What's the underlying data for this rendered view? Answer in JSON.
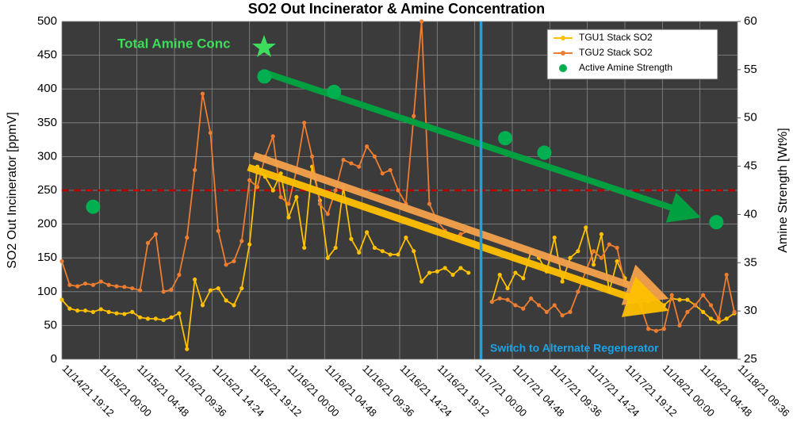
{
  "chart_data": {
    "type": "line",
    "title": "SO2 Out Incinerator & Amine Concentration",
    "y_label": "SO2 Out Incinerator [ppmV]",
    "y2_label": "Amine Strength [Wt%]",
    "xlim": [
      0,
      86.4
    ],
    "xticks": [
      {
        "value": 0,
        "label": "11/14/21 19:12"
      },
      {
        "value": 4.8,
        "label": "11/15/21 00:00"
      },
      {
        "value": 9.6,
        "label": "11/15/21 04:48"
      },
      {
        "value": 14.4,
        "label": "11/15/21 09:36"
      },
      {
        "value": 19.2,
        "label": "11/15/21 14:24"
      },
      {
        "value": 24,
        "label": "11/15/21 19:12"
      },
      {
        "value": 28.8,
        "label": "11/16/21 00:00"
      },
      {
        "value": 33.6,
        "label": "11/16/21 04:48"
      },
      {
        "value": 38.4,
        "label": "11/16/21 09:36"
      },
      {
        "value": 43.2,
        "label": "11/16/21 14:24"
      },
      {
        "value": 48,
        "label": "11/16/21 19:12"
      },
      {
        "value": 52.8,
        "label": "11/17/21 00:00"
      },
      {
        "value": 57.6,
        "label": "11/17/21 04:48"
      },
      {
        "value": 62.4,
        "label": "11/17/21 09:36"
      },
      {
        "value": 67.2,
        "label": "11/17/21 14:24"
      },
      {
        "value": 72,
        "label": "11/17/21 19:12"
      },
      {
        "value": 76.8,
        "label": "11/18/21 00:00"
      },
      {
        "value": 81.6,
        "label": "11/18/21 04:48"
      },
      {
        "value": 86.4,
        "label": "11/18/21 09:36"
      }
    ],
    "ylim": [
      0,
      500
    ],
    "yticks": [
      0,
      50,
      100,
      150,
      200,
      250,
      300,
      350,
      400,
      450,
      500
    ],
    "y2lim": [
      25,
      60
    ],
    "y2ticks": [
      25,
      30,
      35,
      40,
      45,
      50,
      55,
      60
    ],
    "grid": true,
    "ref_line": 250,
    "annotations": [
      {
        "text": "Total Amine Conc"
      },
      {
        "text": "Switch to Alternate Regenerator",
        "x": 53.6
      }
    ],
    "series": [
      {
        "name": "TGU1 Stack SO2",
        "color": "#ffc000",
        "values": [
          88,
          75,
          72,
          72,
          70,
          74,
          70,
          68,
          67,
          70,
          62,
          60,
          60,
          58,
          62,
          68,
          15,
          118,
          80,
          102,
          105,
          87,
          80,
          105,
          170,
          285,
          270,
          250,
          275,
          210,
          240,
          165,
          285,
          235,
          150,
          165,
          255,
          178,
          158,
          188,
          165,
          160,
          155,
          155,
          180,
          160,
          115,
          128,
          130,
          135,
          125,
          135,
          128,
          null,
          null,
          85,
          125,
          105,
          128,
          120,
          160,
          150,
          130,
          180,
          115,
          150,
          160,
          195,
          140,
          185,
          100,
          145,
          120,
          95,
          90,
          85,
          90,
          80,
          90,
          88,
          88,
          80,
          70,
          60,
          55,
          60,
          68
        ]
      },
      {
        "name": "TGU2 Stack SO2",
        "color": "#ed7d31",
        "values": [
          145,
          110,
          108,
          112,
          110,
          115,
          110,
          108,
          107,
          105,
          102,
          172,
          185,
          100,
          103,
          125,
          180,
          280,
          393,
          335,
          190,
          140,
          145,
          175,
          265,
          255,
          300,
          330,
          240,
          230,
          280,
          350,
          300,
          230,
          215,
          250,
          295,
          290,
          285,
          315,
          300,
          275,
          280,
          250,
          230,
          360,
          500,
          230,
          205,
          190,
          180,
          185,
          190,
          null,
          null,
          85,
          90,
          88,
          80,
          75,
          90,
          80,
          70,
          80,
          65,
          70,
          100,
          130,
          160,
          150,
          170,
          165,
          110,
          100,
          80,
          45,
          42,
          45,
          95,
          50,
          70,
          80,
          95,
          80,
          60,
          125,
          70
        ]
      },
      {
        "name": "Active Amine Strength",
        "color": "#00b050",
        "type": "scatter",
        "axis": "y2",
        "x": [
          4,
          25.9,
          34.8,
          56.7,
          61.7,
          83.7
        ],
        "values": [
          40.8,
          54.3,
          52.7,
          47.9,
          46.4,
          39.2
        ]
      }
    ]
  }
}
